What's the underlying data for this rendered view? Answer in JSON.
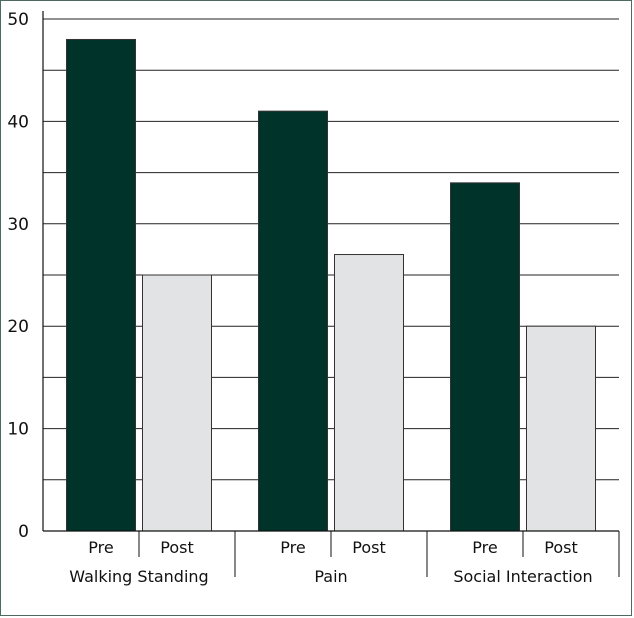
{
  "chart_data": {
    "type": "bar",
    "groups": [
      "Walking Standing",
      "Pain",
      "Social Interaction"
    ],
    "subcategories": [
      "Pre",
      "Post"
    ],
    "series": [
      {
        "values": [
          48,
          41,
          34
        ],
        "color": "#00332a"
      },
      {
        "values": [
          25,
          27,
          20
        ],
        "color": "#e2e3e4"
      }
    ],
    "ylim": [
      0,
      50
    ],
    "yticks": [
      0,
      10,
      20,
      30,
      40,
      50
    ],
    "grid": true,
    "title": "",
    "xlabel": "",
    "ylabel": ""
  }
}
